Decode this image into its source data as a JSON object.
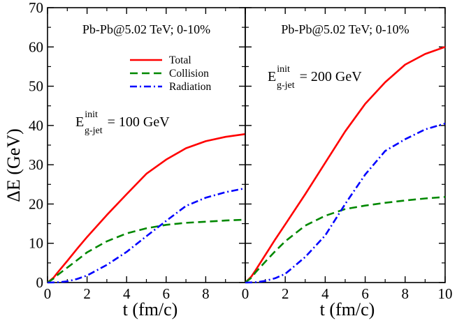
{
  "chart_data": {
    "type": "line",
    "ylabel": "ΔE (GeV)",
    "xlabel": "t (fm/c)",
    "ylim": [
      0,
      70
    ],
    "xlim": [
      0,
      10
    ],
    "yticks": [
      0,
      10,
      20,
      30,
      40,
      50,
      60,
      70
    ],
    "xticks_left": [
      0,
      2,
      4,
      6,
      8
    ],
    "xticks_right": [
      0,
      2,
      4,
      6,
      8,
      10
    ],
    "legend": [
      {
        "name": "Total",
        "color": "#ff0000",
        "dash": "solid"
      },
      {
        "name": "Collision",
        "color": "#008800",
        "dash": "dashed"
      },
      {
        "name": "Radiation",
        "color": "#0000ff",
        "dash": "dashdot"
      }
    ],
    "panels": [
      {
        "id": "left",
        "header": "Pb-Pb@5.02 TeV;  0-10%",
        "energy": {
          "symbol": "E",
          "sup": "init",
          "sub": "g-jet",
          "value": " = 100 GeV"
        },
        "series": [
          {
            "name": "Total",
            "color": "#ff0000",
            "x": [
              0,
              0.3,
              0.5,
              1,
              1.5,
              2,
              3,
              4,
              5,
              6,
              7,
              8,
              9,
              10
            ],
            "y": [
              0,
              1.2,
              2.5,
              5.5,
              8.6,
              11.6,
              17.2,
              22.5,
              27.7,
              31.3,
              34.2,
              36.0,
              37.1,
              37.8
            ]
          },
          {
            "name": "Collision",
            "color": "#008800",
            "x": [
              0,
              0.3,
              0.5,
              1,
              1.5,
              2,
              3,
              4,
              5,
              6,
              7,
              8,
              9,
              10
            ],
            "y": [
              0,
              1.0,
              1.9,
              3.8,
              5.7,
              7.7,
              10.5,
              12.5,
              13.8,
              14.7,
              15.2,
              15.5,
              15.8,
              16.0
            ]
          },
          {
            "name": "Radiation",
            "color": "#0000ff",
            "x": [
              0,
              0.5,
              1,
              1.5,
              2,
              3,
              4,
              5,
              6,
              7,
              8,
              9,
              10
            ],
            "y": [
              0,
              0.05,
              0.3,
              0.9,
              1.8,
              4.5,
              7.8,
              11.8,
              15.7,
              19.5,
              21.6,
              23.0,
              24.0
            ]
          }
        ]
      },
      {
        "id": "right",
        "header": "Pb-Pb@5.02 TeV;  0-10%",
        "energy": {
          "symbol": "E",
          "sup": "init",
          "sub": "g-jet",
          "value": " = 200 GeV"
        },
        "series": [
          {
            "name": "Total",
            "color": "#ff0000",
            "x": [
              0,
              0.3,
              0.5,
              1,
              1.5,
              2,
              3,
              4,
              5,
              6,
              7,
              8,
              9,
              10
            ],
            "y": [
              0,
              1.5,
              3.0,
              7.0,
              11.0,
              14.8,
              22.5,
              30.5,
              38.5,
              45.5,
              51.0,
              55.5,
              58.2,
              60.0
            ]
          },
          {
            "name": "Collision",
            "color": "#008800",
            "x": [
              0,
              0.3,
              0.5,
              1,
              1.5,
              2,
              3,
              4,
              5,
              6,
              7,
              8,
              9,
              10
            ],
            "y": [
              0,
              1.2,
              2.5,
              5.3,
              8.0,
              10.5,
              14.5,
              17.0,
              18.7,
              19.6,
              20.3,
              20.9,
              21.4,
              21.8
            ]
          },
          {
            "name": "Radiation",
            "color": "#0000ff",
            "x": [
              0,
              0.5,
              1,
              1.5,
              2,
              3,
              4,
              5,
              6,
              7,
              8,
              9,
              10
            ],
            "y": [
              0,
              0.05,
              0.4,
              1.1,
              2.2,
              6.5,
              12.0,
              20.0,
              27.5,
              33.5,
              36.5,
              39.0,
              40.5
            ]
          }
        ]
      }
    ]
  }
}
